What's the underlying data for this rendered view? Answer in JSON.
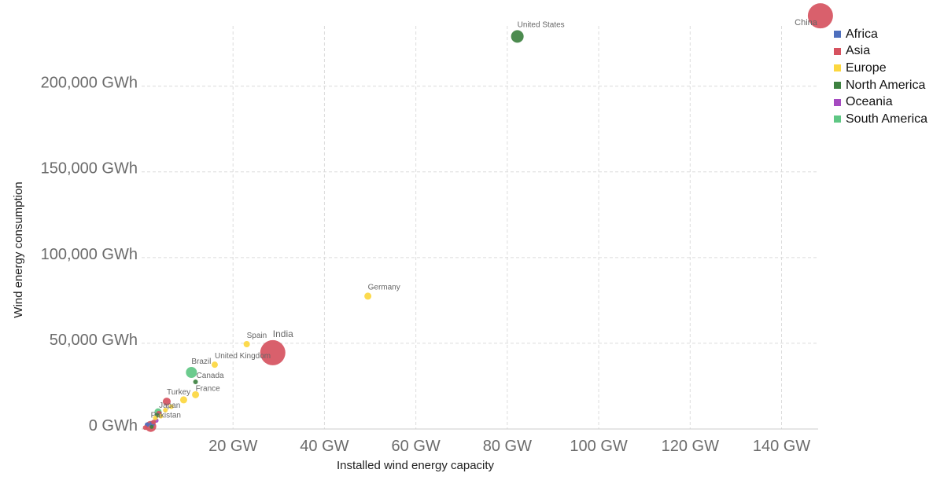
{
  "chart_data": {
    "type": "scatter",
    "xlabel": "Installed wind energy capacity",
    "ylabel": "Wind energy consumption",
    "xlim": [
      0,
      148
    ],
    "ylim": [
      0,
      242000
    ],
    "x_ticks": [
      {
        "value": 20,
        "label": "20 GW"
      },
      {
        "value": 40,
        "label": "40 GW"
      },
      {
        "value": 60,
        "label": "60 GW"
      },
      {
        "value": 80,
        "label": "80 GW"
      },
      {
        "value": 100,
        "label": "100 GW"
      },
      {
        "value": 120,
        "label": "120 GW"
      },
      {
        "value": 140,
        "label": "140 GW"
      }
    ],
    "y_ticks": [
      {
        "value": 0,
        "label": "0 GWh"
      },
      {
        "value": 50000,
        "label": "50,000 GWh"
      },
      {
        "value": 100000,
        "label": "100,000 GWh"
      },
      {
        "value": 150000,
        "label": "150,000 GWh"
      },
      {
        "value": 200000,
        "label": "200,000 GWh"
      }
    ],
    "grid": true,
    "legend_position": "top-right",
    "regions": [
      {
        "name": "Africa",
        "color": "#4e6fbd"
      },
      {
        "name": "Asia",
        "color": "#d6525f"
      },
      {
        "name": "Europe",
        "color": "#fcd73f"
      },
      {
        "name": "North America",
        "color": "#3d8140"
      },
      {
        "name": "Oceania",
        "color": "#a54ac0"
      },
      {
        "name": "South America",
        "color": "#5fc784"
      }
    ],
    "points": [
      {
        "label": "China",
        "region": "Asia",
        "x": 148.5,
        "y": 241000,
        "r": 16,
        "label_size": 11
      },
      {
        "label": "United States",
        "region": "North America",
        "x": 82.2,
        "y": 229000,
        "r": 8,
        "label_size": 10
      },
      {
        "label": "Germany",
        "region": "Europe",
        "x": 49.5,
        "y": 77500,
        "r": 4.5,
        "label_size": 10
      },
      {
        "label": "India",
        "region": "Asia",
        "x": 28.7,
        "y": 44500,
        "r": 16,
        "label_size": 12
      },
      {
        "label": "Spain",
        "region": "Europe",
        "x": 23.0,
        "y": 49500,
        "r": 4,
        "label_size": 10
      },
      {
        "label": "United Kingdom",
        "region": "Europe",
        "x": 16.0,
        "y": 37500,
        "r": 4,
        "label_size": 10
      },
      {
        "label": "Brazil",
        "region": "South America",
        "x": 10.9,
        "y": 33000,
        "r": 7,
        "label_size": 10
      },
      {
        "label": "Canada",
        "region": "North America",
        "x": 11.8,
        "y": 27500,
        "r": 3,
        "label_size": 10
      },
      {
        "label": "France",
        "region": "Europe",
        "x": 11.8,
        "y": 20000,
        "r": 4.5,
        "label_size": 10
      },
      {
        "label": "Turkey",
        "region": "Asia",
        "x": 5.5,
        "y": 16000,
        "r": 5,
        "label_size": 10
      },
      {
        "label": "Japan",
        "region": "Asia",
        "x": 3.8,
        "y": 9000,
        "r": 3.5,
        "label_size": 10
      },
      {
        "label": "Pakistan",
        "region": "Asia",
        "x": 2.0,
        "y": 1500,
        "r": 7,
        "label_size": 10
      },
      {
        "label": "",
        "region": "Europe",
        "x": 9.2,
        "y": 17000,
        "r": 4.5,
        "label_size": 10
      },
      {
        "label": "",
        "region": "Europe",
        "x": 6.5,
        "y": 13000,
        "r": 3,
        "label_size": 10
      },
      {
        "label": "",
        "region": "Europe",
        "x": 5.2,
        "y": 11000,
        "r": 3,
        "label_size": 10
      },
      {
        "label": "",
        "region": "South America",
        "x": 3.6,
        "y": 10000,
        "r": 4.5,
        "label_size": 10
      },
      {
        "label": "",
        "region": "North America",
        "x": 3.4,
        "y": 8000,
        "r": 3,
        "label_size": 10
      },
      {
        "label": "",
        "region": "Oceania",
        "x": 3.2,
        "y": 5000,
        "r": 3,
        "label_size": 10
      },
      {
        "label": "",
        "region": "Africa",
        "x": 2.3,
        "y": 3000,
        "r": 3.5,
        "label_size": 10
      },
      {
        "label": "",
        "region": "Asia",
        "x": 2.6,
        "y": 4000,
        "r": 3,
        "label_size": 10
      },
      {
        "label": "",
        "region": "Europe",
        "x": 3.0,
        "y": 6500,
        "r": 3,
        "label_size": 10
      },
      {
        "label": "",
        "region": "Europe",
        "x": 4.2,
        "y": 7500,
        "r": 3,
        "label_size": 10
      },
      {
        "label": "",
        "region": "Africa",
        "x": 1.2,
        "y": 2500,
        "r": 3,
        "label_size": 10
      },
      {
        "label": "",
        "region": "North America",
        "x": 2.2,
        "y": 1200,
        "r": 2.5,
        "label_size": 10
      },
      {
        "label": "",
        "region": "Asia",
        "x": 0.8,
        "y": 800,
        "r": 3,
        "label_size": 10
      }
    ]
  }
}
